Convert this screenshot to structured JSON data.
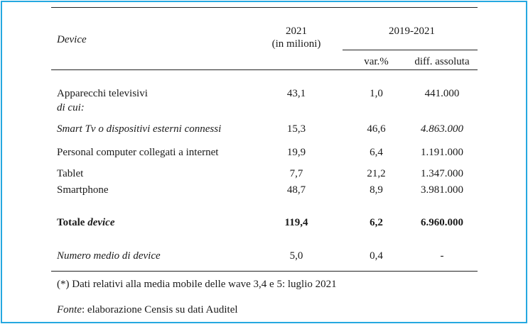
{
  "header": {
    "device": "Device",
    "year": "2021",
    "year_unit": "(in milioni)",
    "period": "2019-2021",
    "var_pct": "var.%",
    "diff_abs": "diff. assoluta"
  },
  "rows": [
    {
      "label": "Apparecchi televisivi",
      "value": "43,1",
      "var": "1,0",
      "diff": "441.000"
    },
    {
      "label": "di cui:"
    },
    {
      "label": "Smart Tv o dispositivi esterni connessi",
      "value": "15,3",
      "var": "46,6",
      "diff": "4.863.000"
    },
    {
      "label": "Personal computer collegati a internet",
      "value": "19,9",
      "var": "6,4",
      "diff": "1.191.000"
    },
    {
      "label": "Tablet",
      "value": "7,7",
      "var": "21,2",
      "diff": "1.347.000"
    },
    {
      "label": "Smartphone",
      "value": "48,7",
      "var": "8,9",
      "diff": "3.981.000"
    }
  ],
  "total": {
    "label_prefix": "Totale ",
    "label_italic": "device",
    "value": "119,4",
    "var": "6,2",
    "diff": "6.960.000"
  },
  "mean": {
    "label": "Numero medio di device",
    "value": "5,0",
    "var": "0,4",
    "diff": "-"
  },
  "footnote": "(*) Dati relativi alla media mobile delle wave 3,4 e 5: luglio 2021",
  "source": {
    "label": "Fonte",
    "text": ": elaborazione Censis su dati Auditel"
  }
}
